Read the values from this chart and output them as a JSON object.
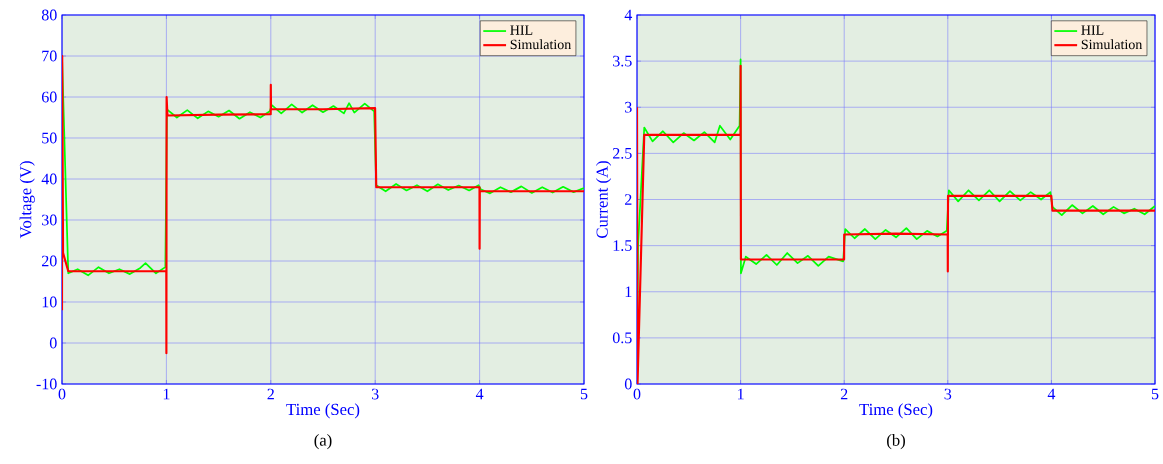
{
  "chart_data": [
    {
      "type": "line",
      "xlabel": "Time (Sec)",
      "ylabel": "Voltage (V)",
      "xlim": [
        0,
        5
      ],
      "ylim": [
        -10,
        80
      ],
      "xticks": [
        0,
        1,
        2,
        3,
        4,
        5
      ],
      "yticks": [
        -10,
        0,
        10,
        20,
        30,
        40,
        50,
        60,
        70,
        80
      ],
      "grid": true,
      "legend": "top right",
      "marker": "none",
      "annotations": [
        "(a)"
      ],
      "series": [
        {
          "name": "HIL",
          "color": "#00ff00",
          "x": [
            0,
            0.01,
            0.06,
            0.15,
            0.25,
            0.35,
            0.45,
            0.55,
            0.65,
            0.75,
            0.8,
            0.9,
            0.99,
            1.0,
            1.005,
            1.1,
            1.2,
            1.3,
            1.4,
            1.5,
            1.6,
            1.7,
            1.8,
            1.9,
            1.99,
            2.01,
            2.1,
            2.2,
            2.3,
            2.4,
            2.5,
            2.6,
            2.7,
            2.75,
            2.8,
            2.9,
            2.99,
            3.01,
            3.1,
            3.2,
            3.3,
            3.4,
            3.5,
            3.6,
            3.7,
            3.8,
            3.9,
            3.99,
            4.01,
            4.1,
            4.2,
            4.3,
            4.4,
            4.5,
            4.6,
            4.7,
            4.8,
            4.9,
            5
          ],
          "values": [
            70,
            null,
            17,
            18,
            16.5,
            18.5,
            17,
            18,
            16.8,
            18.3,
            19.5,
            17,
            18.5,
            null,
            57,
            55,
            56.8,
            54.8,
            56.5,
            55.2,
            56.7,
            54.7,
            56.3,
            55,
            56.5,
            58,
            56,
            58.2,
            56.2,
            58,
            56.3,
            57.8,
            56,
            58.5,
            56.2,
            58.4,
            56.5,
            38.5,
            37,
            38.8,
            37.2,
            38.5,
            37,
            38.7,
            37.3,
            38.4,
            37.2,
            38.5,
            37.5,
            36.5,
            38,
            36.8,
            38.2,
            36.6,
            38,
            36.7,
            38.1,
            36.8,
            37.8
          ]
        },
        {
          "name": "Simulation",
          "color": "#ff0000",
          "x": [
            0,
            0.002,
            0.01,
            0.06,
            0.5,
            0.999,
            1.0,
            1.002,
            1.01,
            1.5,
            1.999,
            2.0,
            2.002,
            2.5,
            2.999,
            3.01,
            3.5,
            3.999,
            4.0,
            4.002,
            5
          ],
          "values": [
            8,
            70,
            22,
            17.5,
            17.5,
            17.5,
            -2.5,
            60,
            55.5,
            55.7,
            55.8,
            63,
            57,
            57,
            57.3,
            38,
            38,
            38,
            23,
            37,
            37
          ]
        }
      ]
    },
    {
      "type": "line",
      "xlabel": "Time (Sec)",
      "ylabel": "Current (A)",
      "xlim": [
        0,
        5
      ],
      "ylim": [
        0,
        4
      ],
      "xticks": [
        0,
        1,
        2,
        3,
        4,
        5
      ],
      "yticks": [
        0,
        0.5,
        1,
        1.5,
        2,
        2.5,
        3,
        3.5,
        4
      ],
      "grid": true,
      "legend": "top right",
      "marker": "none",
      "annotations": [
        "(b)"
      ],
      "series": [
        {
          "name": "HIL",
          "color": "#00ff00",
          "x": [
            0,
            0.01,
            0.07,
            0.15,
            0.25,
            0.35,
            0.45,
            0.55,
            0.65,
            0.75,
            0.8,
            0.9,
            0.99,
            1.0,
            1.003,
            1.05,
            1.15,
            1.25,
            1.35,
            1.45,
            1.55,
            1.65,
            1.75,
            1.85,
            1.99,
            2.01,
            2.1,
            2.2,
            2.3,
            2.4,
            2.5,
            2.6,
            2.7,
            2.8,
            2.9,
            2.99,
            3.01,
            3.1,
            3.2,
            3.3,
            3.4,
            3.5,
            3.6,
            3.7,
            3.8,
            3.9,
            3.99,
            4.01,
            4.1,
            4.2,
            4.3,
            4.4,
            4.5,
            4.6,
            4.7,
            4.8,
            4.9,
            5
          ],
          "values": [
            0,
            1.5,
            2.78,
            2.63,
            2.74,
            2.62,
            2.72,
            2.64,
            2.73,
            2.62,
            2.8,
            2.65,
            2.8,
            3.52,
            1.2,
            1.38,
            1.3,
            1.4,
            1.29,
            1.42,
            1.31,
            1.39,
            1.28,
            1.38,
            1.33,
            1.68,
            1.58,
            1.68,
            1.57,
            1.67,
            1.59,
            1.69,
            1.57,
            1.66,
            1.6,
            1.66,
            2.1,
            1.98,
            2.1,
            1.99,
            2.1,
            1.98,
            2.09,
            1.99,
            2.08,
            2.0,
            2.08,
            1.92,
            1.83,
            1.94,
            1.85,
            1.93,
            1.84,
            1.92,
            1.85,
            1.9,
            1.84,
            1.93
          ]
        },
        {
          "name": "Simulation",
          "color": "#ff0000",
          "x": [
            0,
            0.005,
            0.07,
            0.5,
            0.999,
            1.0,
            1.003,
            1.5,
            1.999,
            2.0,
            2.5,
            2.999,
            3.0,
            3.002,
            3.5,
            3.999,
            4.01,
            4.5,
            5
          ],
          "values": [
            3,
            0,
            2.7,
            2.7,
            2.7,
            3.45,
            1.35,
            1.35,
            1.35,
            1.62,
            1.63,
            1.62,
            1.22,
            2.04,
            2.04,
            2.04,
            1.88,
            1.88,
            1.88
          ]
        }
      ]
    }
  ]
}
